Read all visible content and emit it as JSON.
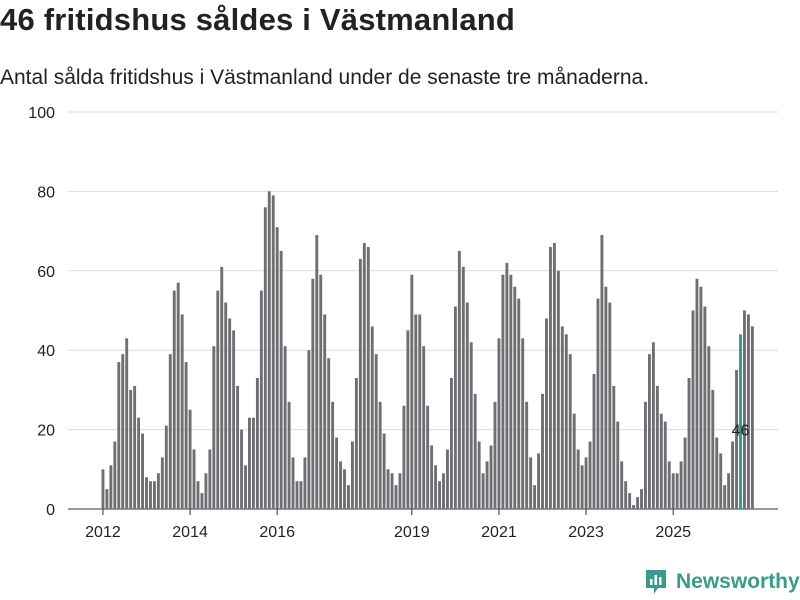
{
  "title": "46 fritidshus såldes i Västmanland",
  "subtitle": "Antal sålda fritidshus i Västmanland under de senaste tre månaderna.",
  "brand": "Newsworthy",
  "colors": {
    "bar": "#6f6e73",
    "highlight": "#2a9d8f",
    "grid": "#dcdcdc",
    "brand": "#3a9a8c"
  },
  "chart_data": {
    "type": "bar",
    "title": "46 fritidshus såldes i Västmanland",
    "xlabel": "",
    "ylabel": "",
    "ylim": [
      0,
      100
    ],
    "yticks": [
      "0",
      "20",
      "40",
      "60",
      "80",
      "100"
    ],
    "xtick_labels": [
      {
        "label": "2012",
        "index": 0
      },
      {
        "label": "2014",
        "index": 22
      },
      {
        "label": "2016",
        "index": 44
      },
      {
        "label": "2019",
        "index": 78
      },
      {
        "label": "2021",
        "index": 100
      },
      {
        "label": "2023",
        "index": 122
      },
      {
        "label": "2025",
        "index": 144
      }
    ],
    "values": [
      10,
      5,
      11,
      17,
      37,
      39,
      43,
      30,
      31,
      23,
      19,
      8,
      7,
      7,
      9,
      13,
      21,
      39,
      55,
      57,
      49,
      37,
      25,
      15,
      7,
      4,
      9,
      15,
      41,
      55,
      61,
      52,
      48,
      45,
      31,
      20,
      11,
      23,
      23,
      33,
      55,
      76,
      80,
      79,
      71,
      65,
      41,
      27,
      13,
      7,
      7,
      13,
      40,
      58,
      69,
      59,
      49,
      38,
      27,
      18,
      12,
      10,
      6,
      17,
      33,
      63,
      67,
      66,
      46,
      39,
      27,
      19,
      10,
      9,
      6,
      9,
      26,
      45,
      59,
      49,
      49,
      41,
      26,
      16,
      11,
      7,
      9,
      15,
      33,
      51,
      65,
      61,
      52,
      42,
      29,
      17,
      9,
      12,
      16,
      27,
      43,
      59,
      62,
      59,
      56,
      53,
      43,
      27,
      13,
      6,
      14,
      29,
      48,
      66,
      67,
      60,
      46,
      44,
      39,
      24,
      15,
      11,
      13,
      17,
      34,
      53,
      69,
      56,
      52,
      31,
      22,
      12,
      7,
      4,
      1,
      3,
      5,
      27,
      39,
      42,
      31,
      24,
      22,
      12,
      9,
      9,
      12,
      18,
      33,
      50,
      58,
      56,
      51,
      41,
      30,
      18,
      14,
      6,
      9,
      17,
      35,
      44,
      50,
      49,
      46
    ],
    "highlight_index": 161,
    "highlight_label": "46"
  }
}
